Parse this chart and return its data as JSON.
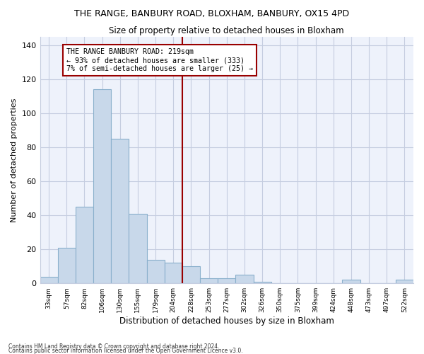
{
  "title": "THE RANGE, BANBURY ROAD, BLOXHAM, BANBURY, OX15 4PD",
  "subtitle": "Size of property relative to detached houses in Bloxham",
  "xlabel": "Distribution of detached houses by size in Bloxham",
  "ylabel": "Number of detached properties",
  "bin_labels": [
    "33sqm",
    "57sqm",
    "82sqm",
    "106sqm",
    "130sqm",
    "155sqm",
    "179sqm",
    "204sqm",
    "228sqm",
    "253sqm",
    "277sqm",
    "302sqm",
    "326sqm",
    "350sqm",
    "375sqm",
    "399sqm",
    "424sqm",
    "448sqm",
    "473sqm",
    "497sqm",
    "522sqm"
  ],
  "bar_values": [
    4,
    21,
    45,
    114,
    85,
    41,
    14,
    12,
    10,
    3,
    3,
    5,
    1,
    0,
    0,
    0,
    0,
    2,
    0,
    0,
    2
  ],
  "bar_color": "#c8d8ea",
  "bar_edge_color": "#8ab0cc",
  "background_color": "#eef2fb",
  "grid_color": "#c5cde0",
  "vline_color": "#990000",
  "annotation_text": "THE RANGE BANBURY ROAD: 219sqm\n← 93% of detached houses are smaller (333)\n7% of semi-detached houses are larger (25) →",
  "annotation_box_color": "#ffffff",
  "annotation_box_edge": "#990000",
  "ylim": [
    0,
    145
  ],
  "yticks": [
    0,
    20,
    40,
    60,
    80,
    100,
    120,
    140
  ],
  "footnote1": "Contains HM Land Registry data © Crown copyright and database right 2024.",
  "footnote2": "Contains public sector information licensed under the Open Government Licence v3.0."
}
